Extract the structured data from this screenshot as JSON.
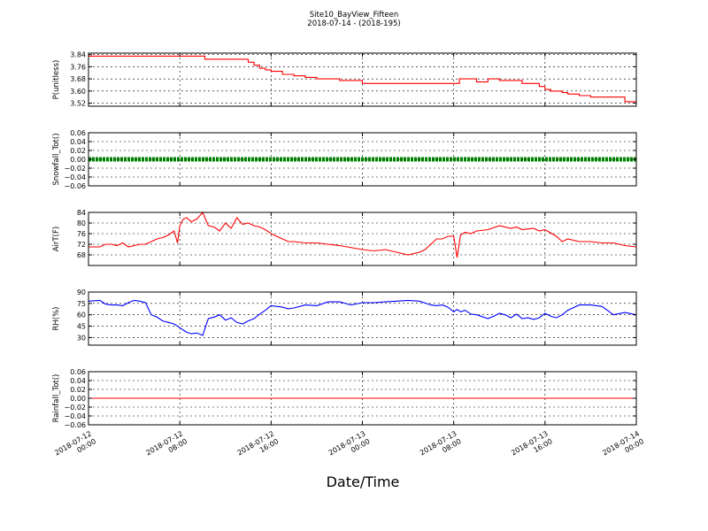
{
  "figure": {
    "title_line1": "Site10_BayView_Fifteen",
    "title_line2": "2018-07-14 - (2018-195)",
    "xlabel": "Date/Time",
    "x_ticks": [
      {
        "t": 0,
        "line1": "2018-07-12",
        "line2": "00:00"
      },
      {
        "t": 8,
        "line1": "2018-07-12",
        "line2": "08:00"
      },
      {
        "t": 16,
        "line1": "2018-07-12",
        "line2": "16:00"
      },
      {
        "t": 24,
        "line1": "2018-07-13",
        "line2": "00:00"
      },
      {
        "t": 32,
        "line1": "2018-07-13",
        "line2": "08:00"
      },
      {
        "t": 40,
        "line1": "2018-07-13",
        "line2": "16:00"
      },
      {
        "t": 48,
        "line1": "2018-07-14",
        "line2": "00:00"
      }
    ]
  },
  "chart_data": [
    {
      "type": "line",
      "ylabel": "P(unitless)",
      "color": "#ff0000",
      "xlim": [
        0,
        48
      ],
      "ylim": [
        3.5,
        3.85
      ],
      "yticks": [
        3.52,
        3.6,
        3.68,
        3.76,
        3.84
      ],
      "ytick_labels": [
        "3.52",
        "3.60",
        "3.68",
        "3.76",
        "3.84"
      ],
      "grid": true,
      "step": true,
      "x": [
        0,
        6,
        10,
        10.2,
        13.5,
        14,
        14.5,
        15,
        15.5,
        16,
        17,
        18,
        19,
        20,
        21,
        22,
        23.5,
        24,
        25,
        30,
        32,
        32.5,
        34,
        35,
        36,
        37,
        38,
        39,
        39.5,
        40,
        40.5,
        41,
        41.5,
        42,
        42.5,
        43,
        44,
        45,
        46,
        47,
        48
      ],
      "y": [
        3.83,
        3.83,
        3.83,
        3.81,
        3.81,
        3.79,
        3.77,
        3.75,
        3.74,
        3.73,
        3.71,
        3.7,
        3.69,
        3.68,
        3.68,
        3.67,
        3.67,
        3.65,
        3.65,
        3.65,
        3.65,
        3.68,
        3.66,
        3.68,
        3.67,
        3.67,
        3.65,
        3.65,
        3.63,
        3.61,
        3.6,
        3.6,
        3.59,
        3.58,
        3.58,
        3.57,
        3.56,
        3.56,
        3.56,
        3.53,
        3.53
      ]
    },
    {
      "type": "line",
      "ylabel": "Snowfall_Tot()",
      "color": "#008000",
      "marker": "dot",
      "xlim": [
        0,
        48
      ],
      "ylim": [
        -0.06,
        0.06
      ],
      "yticks": [
        -0.06,
        -0.04,
        -0.02,
        0.0,
        0.02,
        0.04,
        0.06
      ],
      "ytick_labels": [
        "−0.06",
        "−0.04",
        "−0.02",
        "0.00",
        "0.02",
        "0.04",
        "0.06"
      ],
      "grid": true,
      "x": [
        0,
        48
      ],
      "y": [
        0,
        0
      ]
    },
    {
      "type": "line",
      "ylabel": "AirT(F)",
      "color": "#ff0000",
      "xlim": [
        0,
        48
      ],
      "ylim": [
        64,
        84
      ],
      "yticks": [
        68,
        72,
        76,
        80,
        84
      ],
      "ytick_labels": [
        "68",
        "72",
        "76",
        "80",
        "84"
      ],
      "grid": true,
      "x": [
        0,
        1,
        1.5,
        2,
        2.5,
        3,
        3.5,
        4,
        4.5,
        5,
        5.5,
        6,
        6.5,
        7,
        7.5,
        7.8,
        8,
        8.3,
        8.6,
        9,
        9.5,
        10,
        10.5,
        11,
        11.5,
        12,
        12.5,
        13,
        13.5,
        14,
        14.5,
        15,
        15.5,
        16,
        17,
        17.5,
        18,
        19,
        20,
        22,
        24,
        25,
        26,
        27,
        28,
        29,
        29.5,
        30,
        30.5,
        31,
        31.5,
        32,
        32.3,
        32.6,
        33,
        33.5,
        34,
        35,
        36,
        37,
        37.5,
        38,
        39,
        39.5,
        40,
        41,
        41.5,
        42,
        43,
        44,
        45,
        46,
        47,
        48
      ],
      "y": [
        71,
        71,
        72,
        72,
        71.5,
        72.5,
        71,
        71.5,
        72,
        72,
        73,
        74,
        74.5,
        75.5,
        77,
        72.5,
        79,
        81.5,
        82,
        80.5,
        81.5,
        84,
        79,
        78.5,
        77,
        80,
        78,
        82,
        79.5,
        80,
        79,
        78.5,
        77.5,
        76,
        74,
        73,
        73,
        72.5,
        72.5,
        71.5,
        70,
        69.5,
        70,
        69,
        68,
        69,
        70,
        72,
        74,
        74,
        75,
        75,
        67,
        75.5,
        76.5,
        76,
        77,
        77.5,
        79,
        78,
        78.5,
        77.5,
        78,
        77,
        77.5,
        75,
        73,
        74,
        73,
        73,
        72.5,
        72.5,
        71.5,
        71
      ]
    },
    {
      "type": "line",
      "ylabel": "RH(%)",
      "color": "#0000ff",
      "xlim": [
        0,
        48
      ],
      "ylim": [
        20,
        90
      ],
      "yticks": [
        30,
        45,
        60,
        75,
        90
      ],
      "ytick_labels": [
        "30",
        "45",
        "60",
        "75",
        "90"
      ],
      "grid": true,
      "x": [
        0,
        1,
        1.5,
        2,
        2.5,
        3,
        3.5,
        4,
        4.5,
        5,
        5.5,
        6,
        6.5,
        7,
        7.5,
        8,
        8.3,
        8.6,
        9,
        9.5,
        10,
        10.5,
        11,
        11.5,
        12,
        12.5,
        13,
        13.5,
        14,
        14.5,
        15,
        15.5,
        16,
        17,
        17.5,
        18,
        19,
        20,
        21,
        22,
        23,
        24,
        25,
        26,
        27,
        28,
        29,
        30,
        30.5,
        31,
        31.5,
        32,
        32.3,
        32.6,
        33,
        33.5,
        34,
        35,
        35.5,
        36,
        36.5,
        37,
        37.5,
        38,
        38.5,
        39,
        39.5,
        40,
        40.5,
        41,
        41.5,
        42,
        43,
        44,
        45,
        46,
        47,
        48
      ],
      "y": [
        78,
        79,
        74,
        73,
        73,
        72,
        76,
        79,
        78,
        76,
        60,
        57,
        52,
        50,
        48,
        43,
        40,
        37,
        35,
        36,
        33,
        55,
        57,
        60,
        53,
        56,
        50,
        48,
        52,
        55,
        61,
        66,
        72,
        70,
        68,
        69,
        73,
        72,
        77,
        77,
        73,
        76,
        76,
        77,
        78,
        79,
        78,
        73,
        72,
        73,
        70,
        64,
        67,
        64,
        66,
        61,
        60,
        55,
        58,
        62,
        60,
        56,
        61,
        55,
        56,
        54,
        56,
        62,
        58,
        56,
        60,
        66,
        73,
        73,
        71,
        60,
        63,
        60
      ]
    },
    {
      "type": "line",
      "ylabel": "Rainfall_Tot()",
      "color": "#ff0000",
      "xlim": [
        0,
        48
      ],
      "ylim": [
        -0.06,
        0.06
      ],
      "yticks": [
        -0.06,
        -0.04,
        -0.02,
        0.0,
        0.02,
        0.04,
        0.06
      ],
      "ytick_labels": [
        "−0.06",
        "−0.04",
        "−0.02",
        "0.00",
        "0.02",
        "0.04",
        "0.06"
      ],
      "grid": true,
      "x": [
        0,
        48
      ],
      "y": [
        0,
        0
      ]
    }
  ]
}
